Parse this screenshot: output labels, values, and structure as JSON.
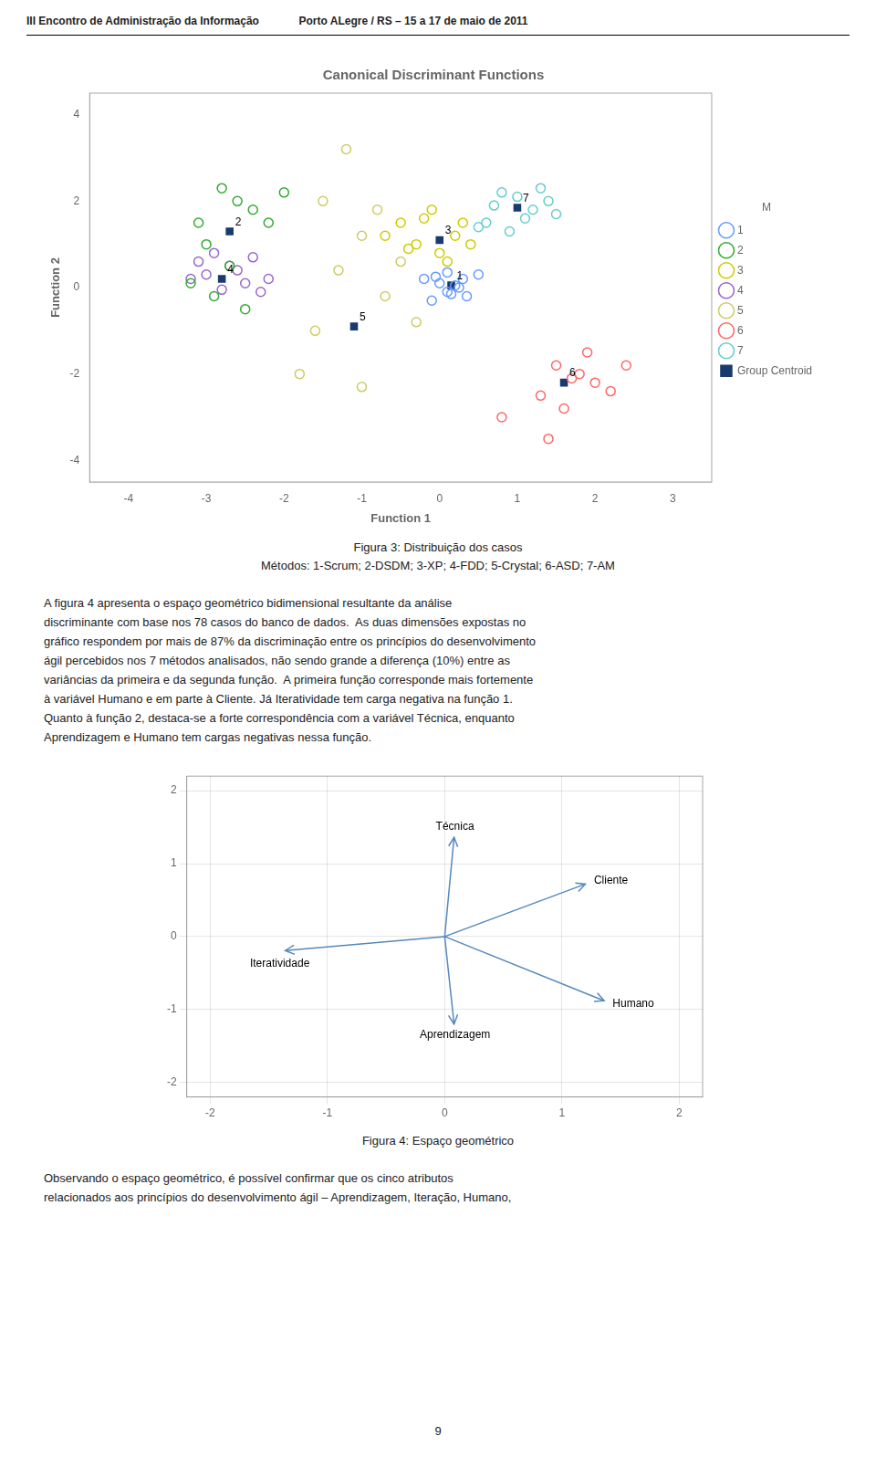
{
  "page": {
    "header": [
      "III Encontro de Administração da Informação",
      "Porto ALegre / RS – 15 a 17 de maio de 2011"
    ],
    "page_number": "9"
  },
  "chart_data": [
    {
      "type": "scatter",
      "title": "Canonical Discriminant Functions",
      "xlabel": "Function 1",
      "ylabel": "Function 2",
      "xlim": [
        -4.5,
        3.5
      ],
      "ylim": [
        -4.5,
        4.5
      ],
      "xticks": [
        -4,
        -3,
        -2,
        -1,
        0,
        1,
        2,
        3
      ],
      "yticks": [
        -4,
        -2,
        0,
        2,
        4
      ],
      "grid": false,
      "legend": "right",
      "legend_title": "M",
      "series": [
        {
          "name": "1",
          "color": "#6699FF",
          "marker": "circle",
          "values": [
            [
              0.2,
              0.05
            ],
            [
              0.1,
              -0.1
            ],
            [
              0.3,
              0.2
            ],
            [
              -0.1,
              -0.3
            ],
            [
              0.0,
              0.1
            ],
            [
              0.5,
              0.3
            ],
            [
              -0.2,
              0.2
            ],
            [
              0.15,
              -0.15
            ],
            [
              0.25,
              0.0
            ],
            [
              -0.05,
              0.25
            ],
            [
              0.35,
              -0.2
            ],
            [
              0.1,
              0.35
            ]
          ]
        },
        {
          "name": "2",
          "color": "#33AA33",
          "marker": "circle",
          "values": [
            [
              -2.8,
              2.3
            ],
            [
              -2.6,
              2.0
            ],
            [
              -2.2,
              1.5
            ],
            [
              -3.2,
              0.1
            ],
            [
              -2.9,
              -0.2
            ],
            [
              -2.5,
              -0.5
            ],
            [
              -3.0,
              1.0
            ],
            [
              -2.7,
              0.5
            ],
            [
              -3.1,
              1.5
            ],
            [
              -2.4,
              1.8
            ],
            [
              -2.0,
              2.2
            ]
          ]
        },
        {
          "name": "3",
          "color": "#CCCC00",
          "marker": "circle",
          "values": [
            [
              -0.5,
              1.5
            ],
            [
              -0.3,
              1.0
            ],
            [
              0.0,
              0.8
            ],
            [
              0.2,
              1.2
            ],
            [
              -0.1,
              1.8
            ],
            [
              0.3,
              1.5
            ],
            [
              -0.7,
              1.2
            ],
            [
              0.1,
              0.6
            ],
            [
              -0.4,
              0.9
            ],
            [
              0.4,
              1.0
            ],
            [
              -0.2,
              1.6
            ]
          ]
        },
        {
          "name": "4",
          "color": "#9966CC",
          "marker": "circle",
          "values": [
            [
              -2.8,
              -0.05
            ],
            [
              -2.5,
              0.1
            ],
            [
              -3.0,
              0.3
            ],
            [
              -2.7,
              0.5
            ],
            [
              -3.2,
              0.2
            ],
            [
              -2.3,
              -0.1
            ],
            [
              -2.6,
              0.4
            ],
            [
              -3.1,
              0.6
            ],
            [
              -2.4,
              0.7
            ],
            [
              -2.9,
              0.8
            ],
            [
              -2.2,
              0.2
            ]
          ]
        },
        {
          "name": "5",
          "color": "#CCCC66",
          "marker": "circle",
          "values": [
            [
              -1.2,
              3.2
            ],
            [
              -1.5,
              2.0
            ],
            [
              -0.8,
              1.8
            ],
            [
              -1.0,
              1.2
            ],
            [
              -0.5,
              0.6
            ],
            [
              -1.3,
              0.4
            ],
            [
              -0.7,
              -0.2
            ],
            [
              -1.6,
              -1.0
            ],
            [
              -1.0,
              -2.3
            ],
            [
              -0.3,
              -0.8
            ],
            [
              -1.8,
              -2.0
            ]
          ]
        },
        {
          "name": "6",
          "color": "#FF6666",
          "marker": "circle",
          "values": [
            [
              1.5,
              -1.8
            ],
            [
              1.8,
              -2.0
            ],
            [
              2.0,
              -2.2
            ],
            [
              1.3,
              -2.5
            ],
            [
              1.6,
              -2.8
            ],
            [
              2.2,
              -2.4
            ],
            [
              1.4,
              -3.5
            ],
            [
              0.8,
              -3.0
            ],
            [
              1.9,
              -1.5
            ],
            [
              2.4,
              -1.8
            ],
            [
              1.7,
              -2.1
            ]
          ]
        },
        {
          "name": "7",
          "color": "#66CCCC",
          "marker": "circle",
          "values": [
            [
              0.8,
              2.2
            ],
            [
              1.0,
              2.1
            ],
            [
              1.2,
              1.8
            ],
            [
              0.6,
              1.5
            ],
            [
              1.5,
              1.7
            ],
            [
              0.9,
              1.3
            ],
            [
              1.3,
              2.3
            ],
            [
              0.7,
              1.9
            ],
            [
              1.1,
              1.6
            ],
            [
              1.4,
              2.0
            ],
            [
              0.5,
              1.4
            ]
          ]
        },
        {
          "name": "Group Centroid",
          "color": "#1a3a6e",
          "marker": "square",
          "values": [
            [
              0.15,
              0.05
            ],
            [
              -2.7,
              1.3
            ],
            [
              0.0,
              1.1
            ],
            [
              -2.8,
              0.2
            ],
            [
              -1.1,
              -0.9
            ],
            [
              1.6,
              -2.2
            ],
            [
              1.0,
              1.85
            ]
          ],
          "point_labels": [
            "1",
            "2",
            "3",
            "4",
            "5",
            "6",
            "7"
          ]
        }
      ],
      "caption": [
        "Figura 3: Distribuição dos casos",
        "Métodos: 1-Scrum; 2-DSDM; 3-XP; 4-FDD; 5-Crystal; 6-ASD; 7-AM"
      ],
      "text_after": [
        "A figura 4 apresenta o espaço geométrico bidimensional resultante da análise",
        "discriminante com base nos 78 casos do banco de dados.  As duas dimensões expostas no",
        "gráfico respondem por mais de 87% da discriminação entre os princípios do desenvolvimento",
        "ágil percebidos nos 7 métodos analisados, não sendo grande a diferença (10%) entre as",
        "variâncias da primeira e da segunda função.  A primeira função corresponde mais fortemente",
        "à variável Humano e em parte à Cliente. Já Iteratividade tem carga negativa na função 1.",
        "Quanto à função 2, destaca-se a forte correspondência com a variável Técnica, enquanto",
        "Aprendizagem e Humano tem cargas negativas nessa função."
      ]
    },
    {
      "type": "arrows",
      "xlim": [
        -2.2,
        2.2
      ],
      "ylim": [
        -2.2,
        2.2
      ],
      "xticks": [
        -2,
        -1,
        0,
        1,
        2
      ],
      "yticks": [
        -2,
        -1,
        0,
        1,
        2
      ],
      "grid": true,
      "color": "#5588BB",
      "series": [
        {
          "name": "Técnica",
          "x": 0.08,
          "y": 1.36
        },
        {
          "name": "Cliente",
          "x": 1.2,
          "y": 0.72
        },
        {
          "name": "Iteratividade",
          "x": -1.36,
          "y": -0.192
        },
        {
          "name": "Aprendizagem",
          "x": 0.08,
          "y": -1.2
        },
        {
          "name": "Humano",
          "x": 1.36,
          "y": -0.88
        }
      ],
      "caption": [
        "Figura 4: Espaço geométrico"
      ],
      "text_after": [
        "Observando o espaço geométrico, é possível confirmar que os cinco atributos",
        "relacionados aos princípios do desenvolvimento ágil – Aprendizagem, Iteração, Humano,"
      ]
    }
  ]
}
